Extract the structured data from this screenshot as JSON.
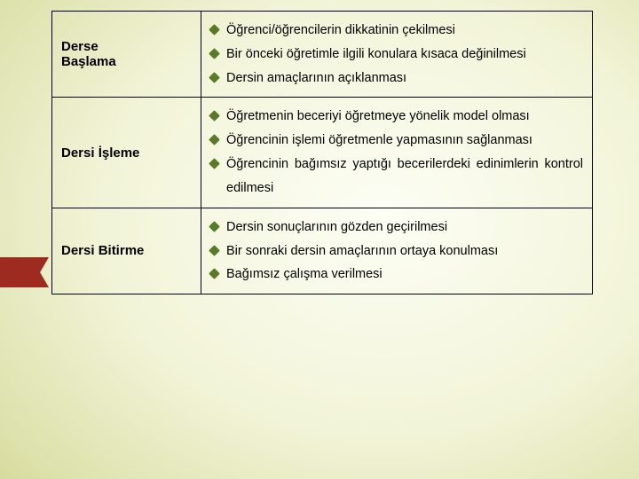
{
  "colors": {
    "ribbon": "#9e2b1f",
    "bullet": "#5a7a2a",
    "text": "#000000",
    "border": "#000000"
  },
  "rows": [
    {
      "label_lines": [
        "Derse",
        "Başlama"
      ],
      "items": [
        "Öğrenci/öğrencilerin dikkatinin çekilmesi",
        "Bir önceki öğretimle ilgili konulara kısaca değinilmesi",
        "Dersin amaçlarının açıklanması"
      ]
    },
    {
      "label_lines": [
        "Dersi İşleme"
      ],
      "items": [
        "Öğretmenin beceriyi öğretmeye yönelik model olması",
        "Öğrencinin işlemi öğretmenle yapmasının sağlanması",
        "Öğrencinin bağımsız yaptığı becerilerdeki edinimlerin kontrol edilmesi"
      ]
    },
    {
      "label_lines": [
        "Dersi Bitirme"
      ],
      "items": [
        "Dersin sonuçlarının gözden geçirilmesi",
        "Bir sonraki dersin amaçlarının ortaya konulması",
        "Bağımsız çalışma verilmesi"
      ]
    }
  ]
}
